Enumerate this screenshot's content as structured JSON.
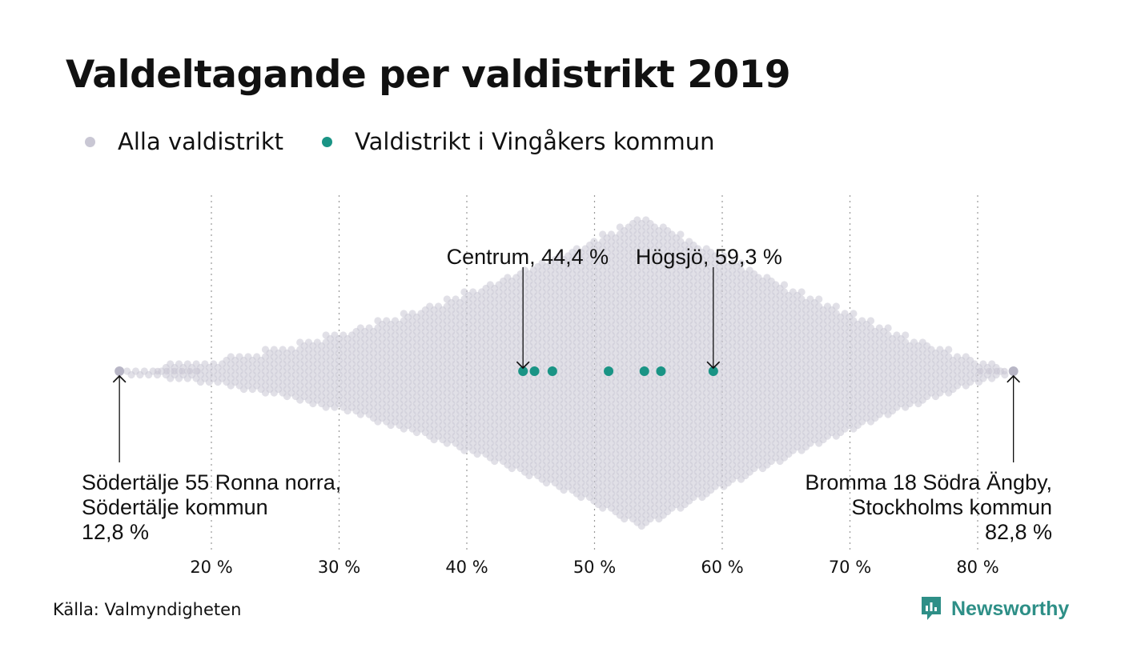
{
  "title": "Valdeltagande per valdistrikt 2019",
  "legend": [
    {
      "label": "Alla valdistrikt",
      "color": "#c9c7d4"
    },
    {
      "label": "Valdistrikt i Vingåkers kommun",
      "color": "#1a9485"
    }
  ],
  "source": "Källa: Valmyndigheten",
  "brand": {
    "name": "Newsworthy",
    "color": "#2e8f87",
    "icon": "newsworthy-logo-icon"
  },
  "chart_data": {
    "type": "scatter",
    "subtype": "beeswarm",
    "x_unit": "%",
    "xlim": [
      12.8,
      82.8
    ],
    "x_ticks": [
      20,
      30,
      40,
      50,
      60,
      70,
      80
    ],
    "x_tick_labels": [
      "20 %",
      "30 %",
      "40 %",
      "50 %",
      "60 %",
      "70 %",
      "80 %"
    ],
    "grid": "vertical dotted",
    "series": [
      {
        "name": "Alla valdistrikt",
        "color": "#c9c7d4",
        "distribution": {
          "min": 12.8,
          "mode": 53.8,
          "max": 82.8,
          "shape": "diamond-shaped swarm, densest near 52–56 %"
        }
      },
      {
        "name": "Valdistrikt i Vingåkers kommun",
        "color": "#1a9485",
        "values": [
          44.4,
          45.3,
          46.7,
          51.1,
          53.9,
          55.2,
          59.3
        ]
      }
    ],
    "annotations": [
      {
        "x": 44.4,
        "lines": [
          "Centrum, 44,4 %"
        ]
      },
      {
        "x": 59.3,
        "lines": [
          "Högsjö, 59,3 %"
        ]
      },
      {
        "x": 12.8,
        "lines": [
          "Södertälje 55 Ronna norra,",
          "Södertälje kommun",
          "12,8 %"
        ]
      },
      {
        "x": 82.8,
        "lines": [
          "Bromma 18 Södra Ängby,",
          "Stockholms kommun",
          "82,8 %"
        ]
      }
    ]
  }
}
